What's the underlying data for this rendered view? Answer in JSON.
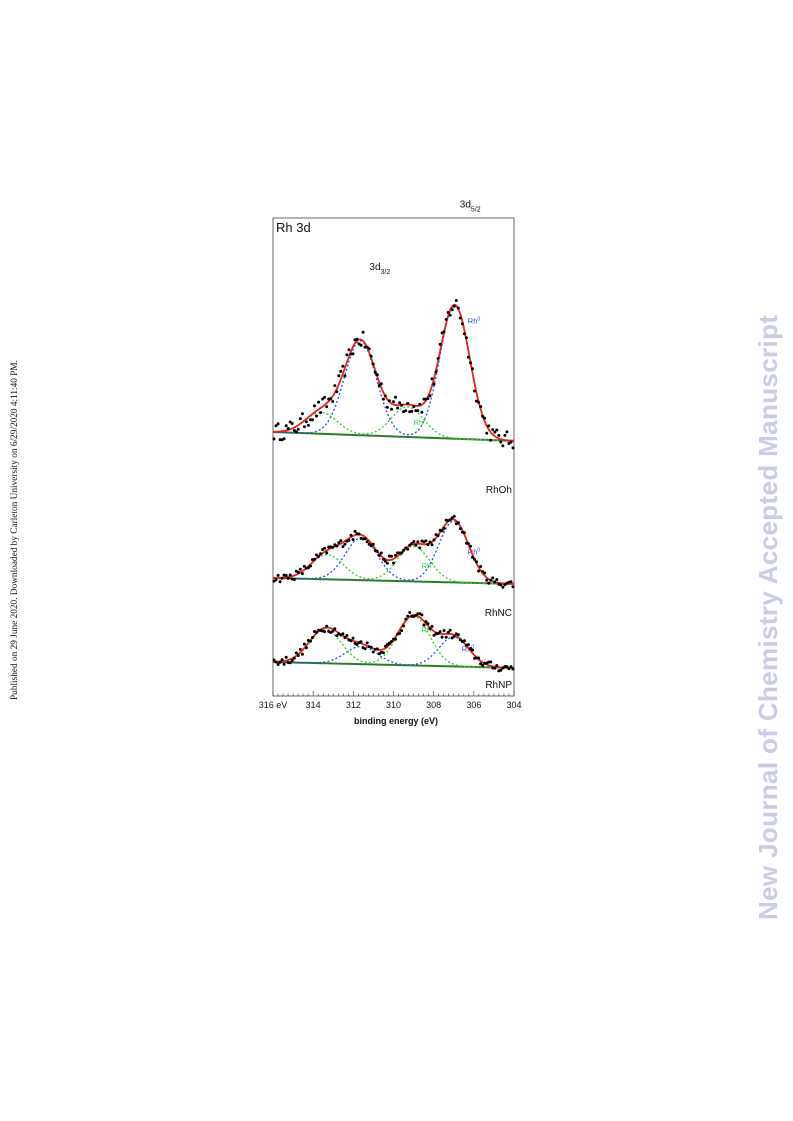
{
  "page": {
    "side_note": "Published on 29 June 2020. Downloaded by Carleton University on 6/29/2020 4:11:40 PM.",
    "watermark": "New Journal of Chemistry Accepted Manuscript"
  },
  "chart_data": {
    "type": "line",
    "title": "Rh 3d",
    "xlabel": "binding energy (eV)",
    "ylabel": "",
    "xlim": [
      316,
      304
    ],
    "x_reversed": true,
    "xticks": [
      316,
      314,
      312,
      310,
      308,
      306,
      304
    ],
    "xtick_labels": [
      "316 eV",
      "314",
      "312",
      "310",
      "308",
      "306",
      "304"
    ],
    "grid": false,
    "legend": "none",
    "colors": {
      "envelope": "#e8231f",
      "rh0": "#2a4fd4",
      "rhplus": "#33cc33",
      "baseline": "#2f7a2f",
      "points": "#000000"
    },
    "panels": [
      {
        "name": "RhOh",
        "baseline": [
          0.05,
          0.0
        ],
        "components": [
          {
            "label": "Rh0",
            "label_html": "Rh<tspan baseline-shift='super' font-size='5'>0</tspan>",
            "label_pos": [
              306.3,
              0.66
            ],
            "color": "rh0",
            "peaks": [
              [
                306.95,
                0.75,
                0.75
              ],
              [
                311.65,
                0.53,
                0.8
              ]
            ]
          },
          {
            "label": "Rh+",
            "label_html": "Rh<tspan baseline-shift='super' font-size='5'>+</tspan>",
            "label_pos": [
              309.0,
              0.09
            ],
            "color": "rhplus",
            "peaks": [
              [
                309.3,
                0.17,
                0.8
              ],
              [
                313.6,
                0.12,
                0.8
              ]
            ]
          }
        ],
        "annotations": [
          {
            "text": "3d",
            "sub": "3/2",
            "x": 311.2,
            "y": 0.96
          },
          {
            "text": "3d",
            "sub": "5/2",
            "x": 306.7,
            "y": 1.31
          }
        ],
        "y_range": [
          0.0,
          1.45
        ]
      },
      {
        "name": "RhNC",
        "baseline": [
          0.05,
          0.0
        ],
        "components": [
          {
            "label": "Rh0",
            "label_html": "Rh<tspan baseline-shift='super' font-size='5'>0</tspan>",
            "label_pos": [
              306.3,
              0.25
            ],
            "color": "rh0",
            "peaks": [
              [
                307.0,
                0.52,
                0.75
              ],
              [
                311.6,
                0.36,
                0.8
              ]
            ]
          },
          {
            "label": "Rh+",
            "label_html": "Rh<tspan baseline-shift='super' font-size='5'>+</tspan>",
            "label_pos": [
              308.6,
              0.13
            ],
            "color": "rhplus",
            "peaks": [
              [
                309.0,
                0.3,
                0.8
              ],
              [
                313.3,
                0.21,
                0.8
              ]
            ]
          }
        ],
        "annotations": [],
        "y_range": [
          0.0,
          0.72
        ]
      },
      {
        "name": "RhNP",
        "baseline": [
          0.05,
          0.0
        ],
        "components": [
          {
            "label": "Rh0",
            "label_html": "Rh<tspan baseline-shift='super' font-size='5'>0</tspan>",
            "label_pos": [
              306.6,
              0.14
            ],
            "color": "rh0",
            "peaks": [
              [
                307.0,
                0.25,
                0.75
              ],
              [
                311.6,
                0.15,
                0.8
              ]
            ]
          },
          {
            "label": "Rh+",
            "label_html": "Rh<tspan baseline-shift='super' font-size='5'>+</tspan>",
            "label_pos": [
              308.6,
              0.3
            ],
            "color": "rhplus",
            "peaks": [
              [
                309.0,
                0.42,
                0.8
              ],
              [
                313.4,
                0.29,
                0.8
              ]
            ]
          }
        ],
        "annotations": [],
        "y_range": [
          0.0,
          0.72
        ]
      }
    ]
  }
}
